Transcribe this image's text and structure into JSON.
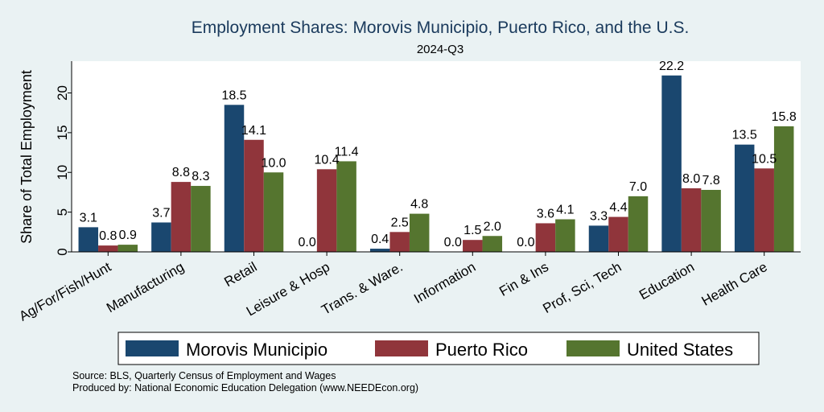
{
  "chart_data": {
    "type": "bar",
    "title": "Employment Shares: Morovis Municipio, Puerto Rico, and the U.S.",
    "subtitle": "2024-Q3",
    "ylabel": "Share of Total Employment",
    "xlabel": "",
    "ylim": [
      0,
      24
    ],
    "yticks": [
      0,
      5,
      10,
      15,
      20
    ],
    "grid": false,
    "legend_position": "bottom",
    "categories": [
      "Ag/For/Fish/Hunt",
      "Manufacturing",
      "Retail",
      "Leisure & Hosp",
      "Trans. & Ware.",
      "Information",
      "Fin & Ins",
      "Prof, Sci, Tech",
      "Education",
      "Health Care"
    ],
    "series": [
      {
        "name": "Morovis Municipio",
        "color": "#1a476f",
        "values": [
          3.1,
          3.7,
          18.5,
          0.0,
          0.4,
          0.0,
          0.0,
          3.3,
          22.2,
          13.5
        ],
        "labels": [
          "3.1",
          "3.7",
          "18.5",
          "0.0",
          "0.4",
          "0.0",
          "0.0",
          "3.3",
          "22.2",
          "13.5"
        ]
      },
      {
        "name": "Puerto Rico",
        "color": "#90353b",
        "values": [
          0.8,
          8.8,
          14.1,
          10.4,
          2.5,
          1.5,
          3.6,
          4.4,
          8.0,
          10.5
        ],
        "labels": [
          "0.8",
          "8.8",
          "14.1",
          "10.4",
          "2.5",
          "1.5",
          "3.6",
          "4.4",
          "8.0",
          "10.5"
        ]
      },
      {
        "name": "United States",
        "color": "#55752f",
        "values": [
          0.9,
          8.3,
          10.0,
          11.4,
          4.8,
          2.0,
          4.1,
          7.0,
          7.8,
          15.8
        ],
        "labels": [
          "0.9",
          "8.3",
          "10.0",
          "11.4",
          "4.8",
          "2.0",
          "4.1",
          "7.0",
          "7.8",
          "15.8"
        ]
      }
    ]
  },
  "notes": {
    "source": "Source: BLS, Quarterly Census of Employment and Wages",
    "produced_by": "Produced by: National Economic Education Delegation (www.NEEDEcon.org)"
  }
}
